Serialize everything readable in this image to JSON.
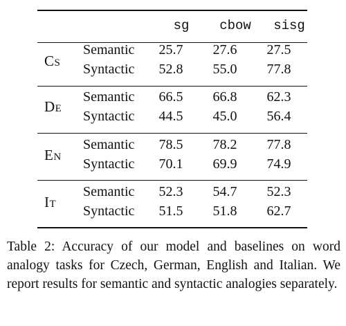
{
  "table": {
    "columns": [
      "sg",
      "cbow",
      "sisg"
    ],
    "groups": [
      {
        "lang_first": "C",
        "lang_rest": "S",
        "rows": [
          {
            "label": "Semantic",
            "values": [
              "25.7",
              "27.6",
              "27.5"
            ]
          },
          {
            "label": "Syntactic",
            "values": [
              "52.8",
              "55.0",
              "77.8"
            ]
          }
        ]
      },
      {
        "lang_first": "D",
        "lang_rest": "E",
        "rows": [
          {
            "label": "Semantic",
            "values": [
              "66.5",
              "66.8",
              "62.3"
            ]
          },
          {
            "label": "Syntactic",
            "values": [
              "44.5",
              "45.0",
              "56.4"
            ]
          }
        ]
      },
      {
        "lang_first": "E",
        "lang_rest": "N",
        "rows": [
          {
            "label": "Semantic",
            "values": [
              "78.5",
              "78.2",
              "77.8"
            ]
          },
          {
            "label": "Syntactic",
            "values": [
              "70.1",
              "69.9",
              "74.9"
            ]
          }
        ]
      },
      {
        "lang_first": "I",
        "lang_rest": "T",
        "rows": [
          {
            "label": "Semantic",
            "values": [
              "52.3",
              "54.7",
              "52.3"
            ]
          },
          {
            "label": "Syntactic",
            "values": [
              "51.5",
              "51.8",
              "62.7"
            ]
          }
        ]
      }
    ]
  },
  "caption": "Table 2: Accuracy of our model and baselines on word analogy tasks for Czech, German, English and Italian. We report results for semantic and syntactic analogies separately."
}
